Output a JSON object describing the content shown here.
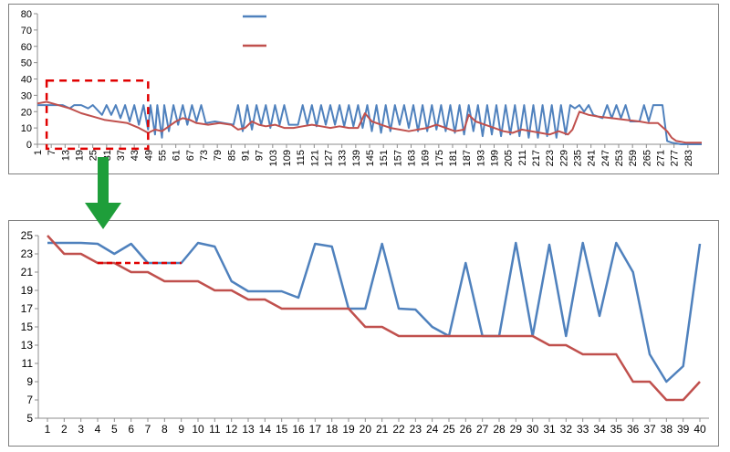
{
  "chart_data": [
    {
      "type": "line",
      "title": "",
      "xlabel": "",
      "ylabel": "",
      "ylim": [
        0,
        80
      ],
      "yticks": [
        0,
        10,
        20,
        30,
        40,
        50,
        60,
        70,
        80
      ],
      "x_range": [
        1,
        289
      ],
      "xtick_labels": [
        "1",
        "7",
        "13",
        "19",
        "25",
        "31",
        "37",
        "43",
        "49",
        "55",
        "61",
        "67",
        "73",
        "79",
        "85",
        "91",
        "97",
        "103",
        "109",
        "115",
        "121",
        "127",
        "133",
        "139",
        "145",
        "151",
        "157",
        "163",
        "169",
        "175",
        "181",
        "187",
        "193",
        "199",
        "205",
        "211",
        "217",
        "223",
        "229",
        "235",
        "241",
        "247",
        "253",
        "259",
        "265",
        "271",
        "277",
        "283"
      ],
      "grid": false,
      "legend": "top-center, entries unlabeled",
      "highlight_box": {
        "x": [
          5,
          49
        ],
        "y": [
          4,
          39
        ],
        "color": "#E00000",
        "style": "dashed"
      },
      "series": [
        {
          "color": "#4F81BD",
          "points": [
            [
              1,
              24
            ],
            [
              8,
              24
            ],
            [
              12,
              24
            ],
            [
              15,
              22
            ],
            [
              17,
              24
            ],
            [
              20,
              24
            ],
            [
              23,
              22
            ],
            [
              25,
              24
            ],
            [
              29,
              18
            ],
            [
              31,
              24
            ],
            [
              33,
              18
            ],
            [
              35,
              24
            ],
            [
              37,
              16
            ],
            [
              39,
              24
            ],
            [
              41,
              14
            ],
            [
              43,
              24
            ],
            [
              45,
              12
            ],
            [
              47,
              24
            ],
            [
              49,
              9
            ],
            [
              50,
              24
            ],
            [
              52,
              6
            ],
            [
              53,
              24
            ],
            [
              55,
              4
            ],
            [
              56,
              24
            ],
            [
              58,
              8
            ],
            [
              60,
              24
            ],
            [
              62,
              12
            ],
            [
              64,
              24
            ],
            [
              66,
              12
            ],
            [
              68,
              24
            ],
            [
              70,
              14
            ],
            [
              72,
              24
            ],
            [
              74,
              13
            ],
            [
              78,
              14
            ],
            [
              82,
              13
            ],
            [
              86,
              12
            ],
            [
              88,
              24
            ],
            [
              90,
              8
            ],
            [
              92,
              24
            ],
            [
              94,
              9
            ],
            [
              96,
              24
            ],
            [
              98,
              12
            ],
            [
              100,
              24
            ],
            [
              102,
              10
            ],
            [
              104,
              24
            ],
            [
              106,
              12
            ],
            [
              108,
              24
            ],
            [
              110,
              12
            ],
            [
              114,
              12
            ],
            [
              116,
              24
            ],
            [
              118,
              12
            ],
            [
              120,
              24
            ],
            [
              122,
              11
            ],
            [
              124,
              24
            ],
            [
              126,
              12
            ],
            [
              128,
              24
            ],
            [
              130,
              12
            ],
            [
              132,
              24
            ],
            [
              134,
              11
            ],
            [
              136,
              24
            ],
            [
              138,
              11
            ],
            [
              140,
              24
            ],
            [
              142,
              10
            ],
            [
              144,
              24
            ],
            [
              146,
              8
            ],
            [
              148,
              24
            ],
            [
              150,
              7
            ],
            [
              152,
              24
            ],
            [
              154,
              8
            ],
            [
              156,
              24
            ],
            [
              158,
              12
            ],
            [
              160,
              24
            ],
            [
              162,
              10
            ],
            [
              164,
              24
            ],
            [
              166,
              8
            ],
            [
              168,
              24
            ],
            [
              170,
              8
            ],
            [
              172,
              24
            ],
            [
              174,
              9
            ],
            [
              176,
              24
            ],
            [
              178,
              8
            ],
            [
              180,
              24
            ],
            [
              182,
              7
            ],
            [
              184,
              24
            ],
            [
              186,
              6
            ],
            [
              188,
              24
            ],
            [
              190,
              8
            ],
            [
              192,
              24
            ],
            [
              194,
              5
            ],
            [
              196,
              24
            ],
            [
              198,
              6
            ],
            [
              200,
              24
            ],
            [
              202,
              5
            ],
            [
              204,
              24
            ],
            [
              206,
              6
            ],
            [
              208,
              24
            ],
            [
              210,
              5
            ],
            [
              212,
              24
            ],
            [
              214,
              4
            ],
            [
              216,
              24
            ],
            [
              218,
              4
            ],
            [
              220,
              24
            ],
            [
              222,
              5
            ],
            [
              224,
              24
            ],
            [
              226,
              4
            ],
            [
              228,
              24
            ],
            [
              230,
              6
            ],
            [
              232,
              24
            ],
            [
              234,
              22
            ],
            [
              236,
              24
            ],
            [
              238,
              20
            ],
            [
              240,
              24
            ],
            [
              242,
              18
            ],
            [
              246,
              16
            ],
            [
              248,
              24
            ],
            [
              250,
              16
            ],
            [
              252,
              24
            ],
            [
              254,
              16
            ],
            [
              256,
              24
            ],
            [
              258,
              14
            ],
            [
              262,
              14
            ],
            [
              264,
              24
            ],
            [
              266,
              14
            ],
            [
              268,
              24
            ],
            [
              270,
              24
            ],
            [
              272,
              24
            ],
            [
              274,
              2
            ],
            [
              276,
              1
            ],
            [
              280,
              0
            ],
            [
              289,
              0
            ]
          ]
        },
        {
          "color": "#C0504D",
          "points": [
            [
              1,
              25
            ],
            [
              5,
              26
            ],
            [
              10,
              24
            ],
            [
              15,
              22
            ],
            [
              20,
              19
            ],
            [
              25,
              17
            ],
            [
              30,
              15
            ],
            [
              35,
              14
            ],
            [
              40,
              13
            ],
            [
              45,
              10
            ],
            [
              49,
              7
            ],
            [
              52,
              9
            ],
            [
              55,
              8
            ],
            [
              58,
              11
            ],
            [
              61,
              14
            ],
            [
              64,
              16
            ],
            [
              67,
              15
            ],
            [
              70,
              13
            ],
            [
              75,
              12
            ],
            [
              80,
              13
            ],
            [
              85,
              12
            ],
            [
              88,
              9
            ],
            [
              91,
              10
            ],
            [
              94,
              14
            ],
            [
              97,
              12
            ],
            [
              100,
              11
            ],
            [
              104,
              12
            ],
            [
              108,
              10
            ],
            [
              112,
              10
            ],
            [
              116,
              11
            ],
            [
              120,
              12
            ],
            [
              124,
              11
            ],
            [
              128,
              10
            ],
            [
              132,
              11
            ],
            [
              136,
              10
            ],
            [
              140,
              10
            ],
            [
              143,
              19
            ],
            [
              146,
              14
            ],
            [
              150,
              12
            ],
            [
              154,
              10
            ],
            [
              158,
              9
            ],
            [
              162,
              8
            ],
            [
              166,
              9
            ],
            [
              170,
              10
            ],
            [
              174,
              12
            ],
            [
              178,
              10
            ],
            [
              182,
              8
            ],
            [
              186,
              9
            ],
            [
              188,
              18
            ],
            [
              191,
              14
            ],
            [
              195,
              12
            ],
            [
              199,
              10
            ],
            [
              203,
              8
            ],
            [
              207,
              7
            ],
            [
              211,
              9
            ],
            [
              215,
              8
            ],
            [
              219,
              7
            ],
            [
              223,
              6
            ],
            [
              227,
              8
            ],
            [
              231,
              6
            ],
            [
              233,
              9
            ],
            [
              236,
              20
            ],
            [
              240,
              18
            ],
            [
              244,
              17
            ],
            [
              250,
              16
            ],
            [
              256,
              15
            ],
            [
              262,
              14
            ],
            [
              266,
              13
            ],
            [
              270,
              13
            ],
            [
              274,
              8
            ],
            [
              276,
              4
            ],
            [
              278,
              2
            ],
            [
              282,
              1
            ],
            [
              289,
              1
            ]
          ]
        }
      ]
    },
    {
      "type": "line",
      "title": "",
      "xlabel": "",
      "ylabel": "",
      "ylim": [
        5,
        25
      ],
      "yticks": [
        5,
        7,
        9,
        11,
        13,
        15,
        17,
        19,
        21,
        23,
        25
      ],
      "categories": [
        "1",
        "2",
        "3",
        "4",
        "5",
        "6",
        "7",
        "8",
        "9",
        "10",
        "11",
        "12",
        "13",
        "14",
        "15",
        "16",
        "17",
        "18",
        "19",
        "20",
        "21",
        "22",
        "23",
        "24",
        "25",
        "26",
        "27",
        "28",
        "29",
        "30",
        "31",
        "32",
        "33",
        "34",
        "35",
        "36",
        "37",
        "38",
        "39",
        "40"
      ],
      "grid": false,
      "dashed_line": {
        "x": [
          4,
          9
        ],
        "y": 22,
        "color": "#E00000"
      },
      "series": [
        {
          "color": "#4F81BD",
          "values": [
            24.2,
            24.2,
            24.2,
            24.1,
            23,
            24.1,
            22,
            22,
            22,
            24.2,
            23.8,
            20,
            18.9,
            18.9,
            18.9,
            18.2,
            24.1,
            23.8,
            17,
            17,
            24.1,
            17,
            16.9,
            15,
            14,
            22,
            14,
            14,
            24.2,
            14,
            24,
            14,
            24.2,
            16.2,
            24.2,
            21,
            12,
            9,
            10.7,
            24.1
          ]
        },
        {
          "color": "#C0504D",
          "values": [
            25,
            23,
            23,
            22,
            22,
            21,
            21,
            20,
            20,
            20,
            19,
            19,
            18,
            18,
            17,
            17,
            17,
            17,
            17,
            15,
            15,
            14,
            14,
            14,
            14,
            14,
            14,
            14,
            14,
            14,
            13,
            13,
            12,
            12,
            12,
            9,
            9,
            7,
            7,
            9
          ]
        }
      ]
    }
  ],
  "arrow": {
    "color": "#1E9E3A",
    "icon": "down-arrow-icon"
  }
}
